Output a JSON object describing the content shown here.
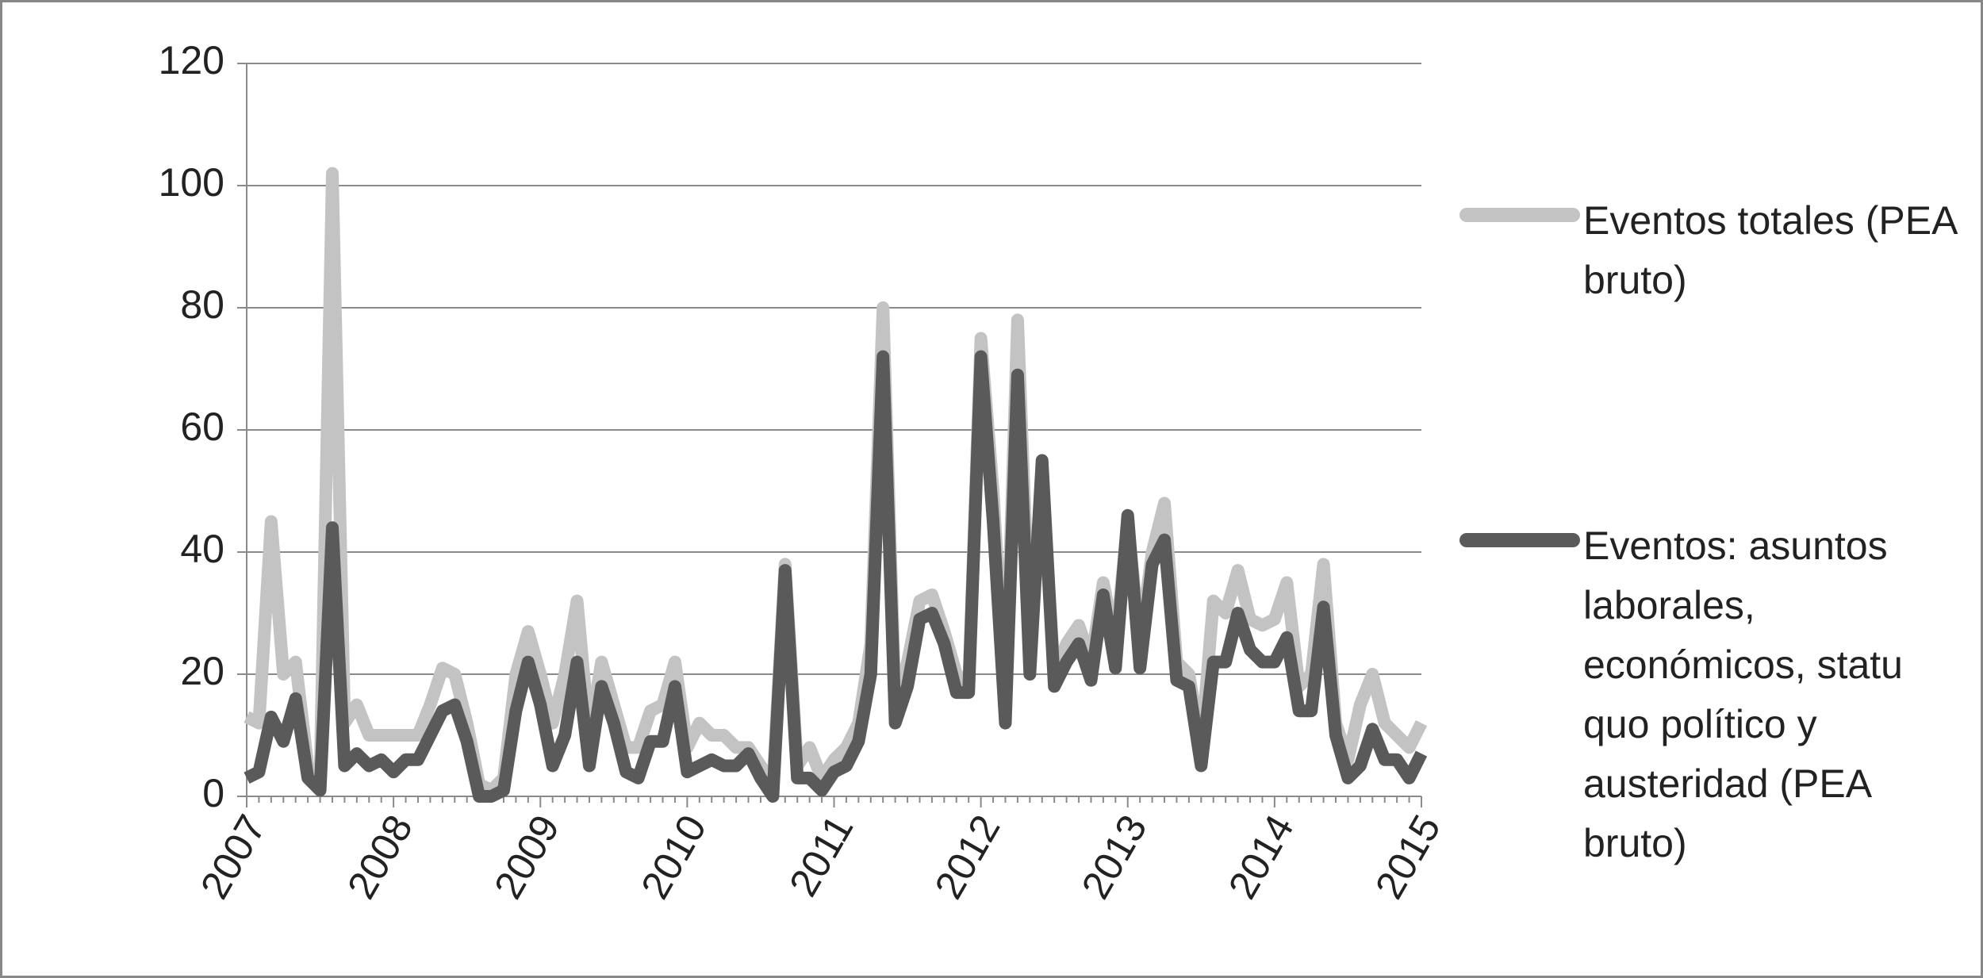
{
  "chart_data": {
    "type": "line",
    "categories": [
      "2007",
      null,
      null,
      null,
      null,
      null,
      null,
      null,
      null,
      null,
      null,
      null,
      "2008",
      null,
      null,
      null,
      null,
      null,
      null,
      null,
      null,
      null,
      null,
      null,
      "2009",
      null,
      null,
      null,
      null,
      null,
      null,
      null,
      null,
      null,
      null,
      null,
      "2010",
      null,
      null,
      null,
      null,
      null,
      null,
      null,
      null,
      null,
      null,
      null,
      "2011",
      null,
      null,
      null,
      null,
      null,
      null,
      null,
      null,
      null,
      null,
      null,
      "2012",
      null,
      null,
      null,
      null,
      null,
      null,
      null,
      null,
      null,
      null,
      null,
      "2013",
      null,
      null,
      null,
      null,
      null,
      null,
      null,
      null,
      null,
      null,
      null,
      "2014",
      null,
      null,
      null,
      null,
      null,
      null,
      null,
      null,
      null,
      null,
      null,
      "2015"
    ],
    "series": [
      {
        "name": "Eventos totales (PEA bruto)",
        "color": "#c3c3c3",
        "values": [
          13,
          12,
          45,
          20,
          22,
          5,
          3,
          102,
          12,
          15,
          10,
          10,
          10,
          10,
          10,
          15,
          21,
          20,
          12,
          2,
          1,
          3,
          20,
          27,
          20,
          12,
          20,
          32,
          10,
          22,
          15,
          8,
          8,
          14,
          15,
          22,
          8,
          12,
          10,
          10,
          8,
          8,
          5,
          2,
          38,
          5,
          8,
          3,
          6,
          8,
          12,
          25,
          80,
          15,
          22,
          32,
          33,
          27,
          20,
          18,
          75,
          50,
          15,
          78,
          25,
          52,
          20,
          25,
          28,
          22,
          35,
          25,
          45,
          25,
          40,
          48,
          22,
          20,
          8,
          32,
          30,
          37,
          29,
          28,
          29,
          35,
          18,
          20,
          38,
          12,
          6,
          15,
          20,
          12,
          10,
          8,
          12
        ]
      },
      {
        "name": "Eventos: asuntos laborales, económicos, statu quo político y austeridad (PEA bruto)",
        "color": "#5a5a5a",
        "values": [
          3,
          4,
          13,
          9,
          16,
          3,
          1,
          44,
          5,
          7,
          5,
          6,
          4,
          6,
          6,
          10,
          14,
          15,
          9,
          0,
          0,
          1,
          14,
          22,
          15,
          5,
          10,
          22,
          5,
          18,
          12,
          4,
          3,
          9,
          9,
          18,
          4,
          5,
          6,
          5,
          5,
          7,
          3,
          0,
          37,
          3,
          3,
          1,
          4,
          5,
          9,
          20,
          72,
          12,
          18,
          29,
          30,
          25,
          17,
          17,
          72,
          45,
          12,
          69,
          20,
          55,
          18,
          22,
          25,
          19,
          33,
          21,
          46,
          21,
          38,
          42,
          19,
          18,
          5,
          22,
          22,
          30,
          24,
          22,
          22,
          26,
          14,
          14,
          31,
          10,
          3,
          5,
          11,
          6,
          6,
          3,
          7
        ]
      }
    ],
    "ylim": [
      0,
      120
    ],
    "yticks": [
      0,
      20,
      40,
      60,
      80,
      100,
      120
    ],
    "grid": true,
    "legend": "right"
  }
}
